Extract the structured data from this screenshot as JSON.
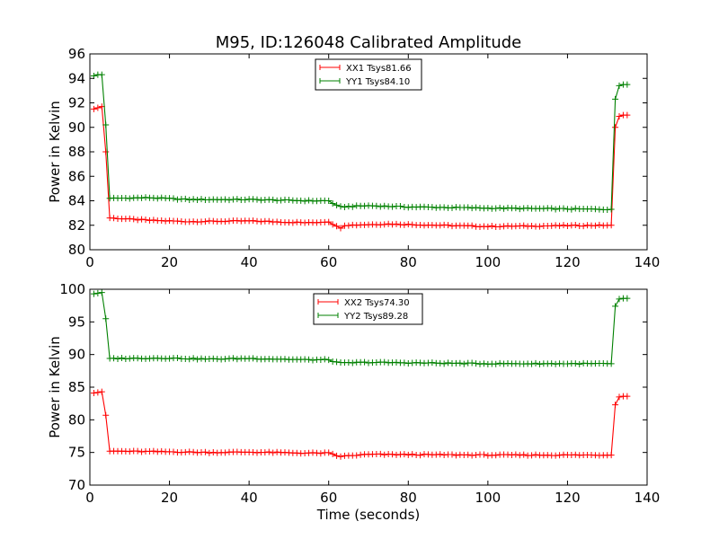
{
  "title": "M95, ID:126048 Calibrated Amplitude",
  "colors": {
    "xx": "#ff0000",
    "yy": "#008000",
    "axis": "#000000"
  },
  "chart_data": [
    {
      "type": "line",
      "title": "M95, ID:126048 Calibrated Amplitude",
      "xlabel": "",
      "ylabel": "Power in Kelvin",
      "xlim": [
        0,
        140
      ],
      "ylim": [
        80,
        96
      ],
      "xticks": [
        0,
        20,
        40,
        60,
        80,
        100,
        120,
        140
      ],
      "yticks": [
        80,
        82,
        84,
        86,
        88,
        90,
        92,
        94,
        96
      ],
      "grid": false,
      "legend": "top-center",
      "series": [
        {
          "name": "XX1 Tsys81.66",
          "color": "#ff0000",
          "points": [
            [
              1,
              91.5
            ],
            [
              2,
              91.6
            ],
            [
              3,
              91.7
            ],
            [
              4,
              88.0
            ],
            [
              5,
              82.6
            ],
            [
              130,
              82.0
            ],
            [
              131,
              82.0
            ],
            [
              132,
              90.0
            ],
            [
              133,
              90.9
            ],
            [
              134,
              91.0
            ],
            [
              135,
              91.0
            ]
          ],
          "plateau": {
            "from": 5,
            "to": 131,
            "marker_step": 1,
            "anchors": [
              [
                5,
                82.6
              ],
              [
                15,
                82.4
              ],
              [
                25,
                82.3
              ],
              [
                40,
                82.35
              ],
              [
                55,
                82.2
              ],
              [
                60,
                82.3
              ],
              [
                62,
                81.9
              ],
              [
                63,
                81.8
              ],
              [
                64,
                82.0
              ],
              [
                75,
                82.1
              ],
              [
                100,
                81.9
              ],
              [
                130,
                82.0
              ]
            ]
          }
        },
        {
          "name": "YY1 Tsys84.10",
          "color": "#008000",
          "points": [
            [
              1,
              94.2
            ],
            [
              2,
              94.3
            ],
            [
              3,
              94.3
            ],
            [
              4,
              90.2
            ],
            [
              5,
              84.2
            ],
            [
              130,
              83.3
            ],
            [
              131,
              83.3
            ],
            [
              132,
              92.3
            ],
            [
              133,
              93.4
            ],
            [
              134,
              93.5
            ],
            [
              135,
              93.5
            ]
          ],
          "plateau": {
            "from": 5,
            "to": 131,
            "marker_step": 1,
            "anchors": [
              [
                5,
                84.2
              ],
              [
                15,
                84.25
              ],
              [
                25,
                84.1
              ],
              [
                40,
                84.1
              ],
              [
                55,
                84.0
              ],
              [
                60,
                84.0
              ],
              [
                62,
                83.6
              ],
              [
                63,
                83.5
              ],
              [
                70,
                83.6
              ],
              [
                80,
                83.5
              ],
              [
                100,
                83.4
              ],
              [
                130,
                83.3
              ]
            ]
          }
        }
      ]
    },
    {
      "type": "line",
      "title": "",
      "xlabel": "Time (seconds)",
      "ylabel": "Power in Kelvin",
      "xlim": [
        0,
        140
      ],
      "ylim": [
        70,
        100
      ],
      "xticks": [
        0,
        20,
        40,
        60,
        80,
        100,
        120,
        140
      ],
      "yticks": [
        70,
        75,
        80,
        85,
        90,
        95,
        100
      ],
      "grid": false,
      "legend": "top-center",
      "series": [
        {
          "name": "XX2 Tsys74.30",
          "color": "#ff0000",
          "points": [
            [
              1,
              84.1
            ],
            [
              2,
              84.2
            ],
            [
              3,
              84.3
            ],
            [
              4,
              80.7
            ],
            [
              5,
              75.2
            ],
            [
              130,
              74.6
            ],
            [
              131,
              74.6
            ],
            [
              132,
              82.3
            ],
            [
              133,
              83.5
            ],
            [
              134,
              83.6
            ],
            [
              135,
              83.6
            ]
          ],
          "plateau": {
            "from": 5,
            "to": 131,
            "marker_step": 1,
            "anchors": [
              [
                5,
                75.2
              ],
              [
                20,
                75.1
              ],
              [
                30,
                75.0
              ],
              [
                40,
                75.05
              ],
              [
                55,
                74.9
              ],
              [
                60,
                74.9
              ],
              [
                62,
                74.5
              ],
              [
                63,
                74.4
              ],
              [
                70,
                74.7
              ],
              [
                100,
                74.6
              ],
              [
                130,
                74.6
              ]
            ]
          }
        },
        {
          "name": "YY2 Tsys89.28",
          "color": "#008000",
          "points": [
            [
              1,
              99.3
            ],
            [
              2,
              99.4
            ],
            [
              3,
              99.5
            ],
            [
              4,
              95.5
            ],
            [
              5,
              89.4
            ],
            [
              130,
              88.6
            ],
            [
              131,
              88.6
            ],
            [
              132,
              97.4
            ],
            [
              133,
              98.5
            ],
            [
              134,
              98.6
            ],
            [
              135,
              98.6
            ]
          ],
          "plateau": {
            "from": 5,
            "to": 131,
            "marker_step": 1,
            "anchors": [
              [
                5,
                89.4
              ],
              [
                20,
                89.45
              ],
              [
                30,
                89.3
              ],
              [
                40,
                89.4
              ],
              [
                55,
                89.2
              ],
              [
                60,
                89.2
              ],
              [
                62,
                88.8
              ],
              [
                63,
                88.7
              ],
              [
                70,
                88.8
              ],
              [
                100,
                88.6
              ],
              [
                130,
                88.6
              ]
            ]
          }
        }
      ]
    }
  ]
}
